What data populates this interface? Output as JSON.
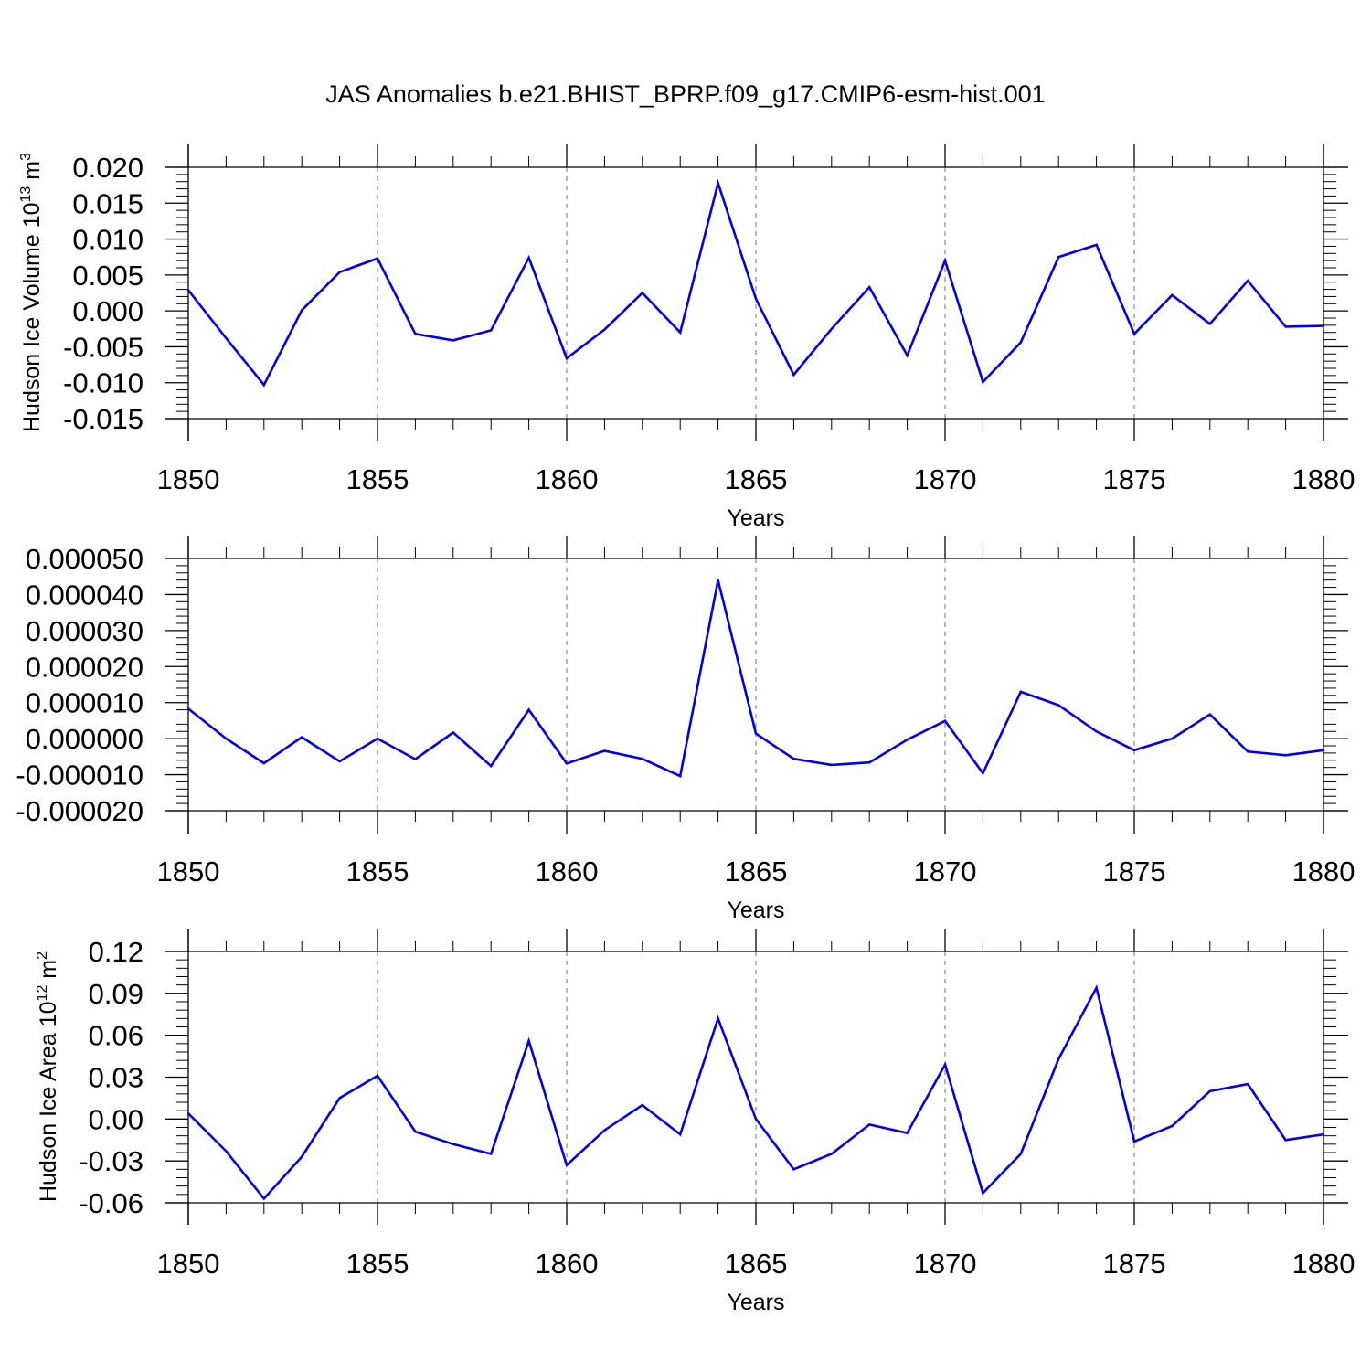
{
  "title": "JAS Anomalies b.e21.BHIST_BPRP.f09_g17.CMIP6-esm-hist.001",
  "chart_data": [
    {
      "type": "line",
      "ylabel": "Hudson Ice Volume 10",
      "ylabel_sup": "13",
      "ylabel_unit": "m",
      "ylabel_unit_sup": "3",
      "xlabel": "Years",
      "xlim": [
        1850,
        1880
      ],
      "ylim": [
        -0.015,
        0.02
      ],
      "xticks": [
        1850,
        1855,
        1860,
        1865,
        1870,
        1875,
        1880
      ],
      "yticks": [
        0.02,
        0.015,
        0.01,
        0.005,
        0.0,
        -0.005,
        -0.01,
        -0.015
      ],
      "yticklabels": [
        "0.020",
        "0.015",
        "0.010",
        "0.005",
        "0.000",
        "-0.005",
        "-0.010",
        "-0.015"
      ],
      "grid": "dashed vertical at major x ticks",
      "color": "#0000ee",
      "x": [
        1850,
        1851,
        1852,
        1853,
        1854,
        1855,
        1856,
        1857,
        1858,
        1859,
        1860,
        1861,
        1862,
        1863,
        1864,
        1865,
        1866,
        1867,
        1868,
        1869,
        1870,
        1871,
        1872,
        1873,
        1874,
        1875,
        1876,
        1877,
        1878,
        1879,
        1880
      ],
      "y": [
        0.0029,
        -0.0038,
        -0.0103,
        0.0001,
        0.0054,
        0.0073,
        -0.0032,
        -0.0041,
        -0.0027,
        0.0074,
        -0.0066,
        -0.0026,
        0.0025,
        -0.003,
        0.0178,
        0.0017,
        -0.0089,
        -0.0025,
        0.0033,
        -0.0062,
        0.007,
        -0.0099,
        -0.0044,
        0.0075,
        0.0092,
        -0.0032,
        0.0022,
        -0.0018,
        0.0042,
        -0.0022,
        -0.0021
      ]
    },
    {
      "type": "line",
      "ylabel": "",
      "xlabel": "Years",
      "xlim": [
        1850,
        1880
      ],
      "ylim": [
        -2e-05,
        5e-05
      ],
      "xticks": [
        1850,
        1855,
        1860,
        1865,
        1870,
        1875,
        1880
      ],
      "yticks": [
        5e-05,
        4e-05,
        3e-05,
        2e-05,
        1e-05,
        0.0,
        -1e-05,
        -2e-05
      ],
      "yticklabels": [
        "0.000050",
        "0.000040",
        "0.000030",
        "0.000020",
        "0.000010",
        "0.000000",
        "-0.000010",
        "-0.000020"
      ],
      "grid": "dashed vertical at major x ticks",
      "color": "#0000ee",
      "x": [
        1850,
        1851,
        1852,
        1853,
        1854,
        1855,
        1856,
        1857,
        1858,
        1859,
        1860,
        1861,
        1862,
        1863,
        1864,
        1865,
        1866,
        1867,
        1868,
        1869,
        1870,
        1871,
        1872,
        1873,
        1874,
        1875,
        1876,
        1877,
        1878,
        1879,
        1880
      ],
      "y": [
        8.3e-06,
        0.0,
        -6.8e-06,
        4e-07,
        -6.3e-06,
        0.0,
        -5.7e-06,
        1.7e-06,
        -7.6e-06,
        8e-06,
        -6.9e-06,
        -3.4e-06,
        -5.6e-06,
        -1.04e-05,
        4.4e-05,
        1.4e-06,
        -5.6e-06,
        -7.3e-06,
        -6.6e-06,
        -3e-07,
        4.9e-06,
        -9.6e-06,
        1.3e-05,
        9.3e-06,
        2e-06,
        -3.2e-06,
        0.0,
        6.7e-06,
        -3.6e-06,
        -4.6e-06,
        -3.2e-06
      ]
    },
    {
      "type": "line",
      "ylabel": "Hudson Ice Area 10",
      "ylabel_sup": "12",
      "ylabel_unit": "m",
      "ylabel_unit_sup": "2",
      "xlabel": "Years",
      "xlim": [
        1850,
        1880
      ],
      "ylim": [
        -0.06,
        0.12
      ],
      "xticks": [
        1850,
        1855,
        1860,
        1865,
        1870,
        1875,
        1880
      ],
      "yticks": [
        0.12,
        0.09,
        0.06,
        0.03,
        0.0,
        -0.03,
        -0.06
      ],
      "yticklabels": [
        "0.12",
        "0.09",
        "0.06",
        "0.03",
        "0.00",
        "-0.03",
        "-0.06"
      ],
      "grid": "dashed vertical at major x ticks",
      "color": "#0000ee",
      "x": [
        1850,
        1851,
        1852,
        1853,
        1854,
        1855,
        1856,
        1857,
        1858,
        1859,
        1860,
        1861,
        1862,
        1863,
        1864,
        1865,
        1866,
        1867,
        1868,
        1869,
        1870,
        1871,
        1872,
        1873,
        1874,
        1875,
        1876,
        1877,
        1878,
        1879,
        1880
      ],
      "y": [
        0.004,
        -0.023,
        -0.057,
        -0.027,
        0.015,
        0.031,
        -0.009,
        -0.018,
        -0.025,
        0.056,
        -0.033,
        -0.008,
        0.01,
        -0.011,
        0.072,
        0.0,
        -0.036,
        -0.025,
        -0.004,
        -0.01,
        0.039,
        -0.053,
        -0.025,
        0.043,
        0.094,
        -0.016,
        -0.005,
        0.02,
        0.025,
        -0.015,
        -0.011
      ]
    }
  ]
}
